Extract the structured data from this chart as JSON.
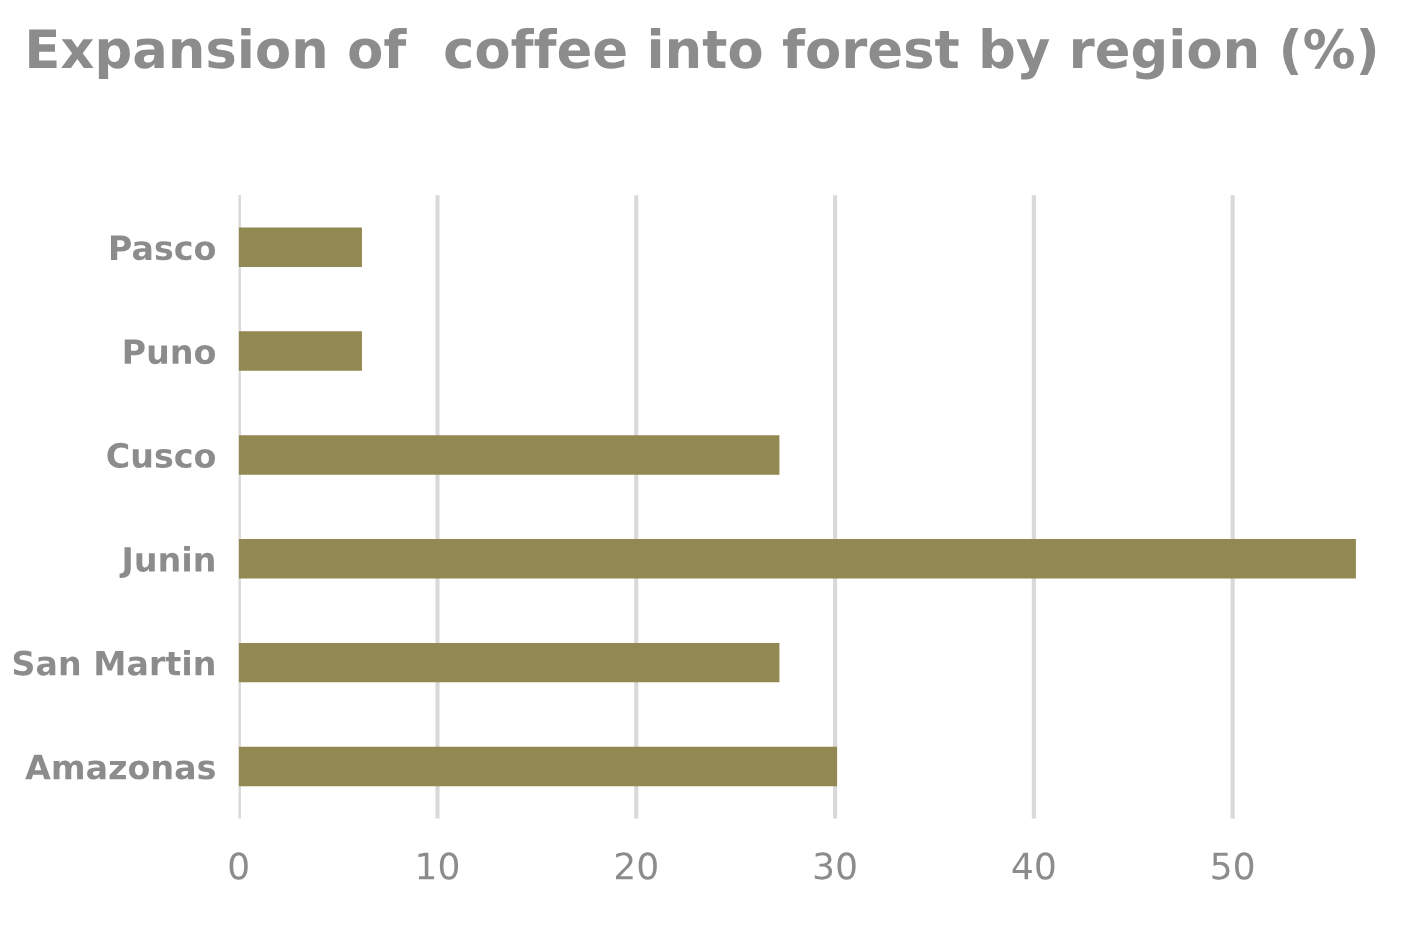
{
  "chart_data": {
    "type": "bar",
    "orientation": "horizontal",
    "title": "Expansion of  coffee into forest by region (%)",
    "categories": [
      "Pasco",
      "Puno",
      "Cusco",
      "Junin",
      "San Martin",
      "Amazonas"
    ],
    "values": [
      6.2,
      6.2,
      27.2,
      56.2,
      27.2,
      30.1
    ],
    "color": "#928952",
    "xlim": [
      0,
      56.5
    ],
    "xticks": [
      0,
      10,
      20,
      30,
      40,
      50
    ],
    "grid": "x"
  }
}
